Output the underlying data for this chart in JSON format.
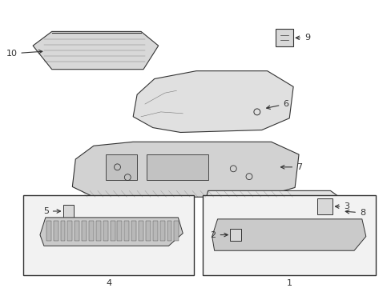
{
  "bg_color": "#ffffff",
  "line_color": "#333333",
  "box_fill": "#f2f2f2",
  "figsize": [
    4.89,
    3.6
  ],
  "dpi": 100
}
